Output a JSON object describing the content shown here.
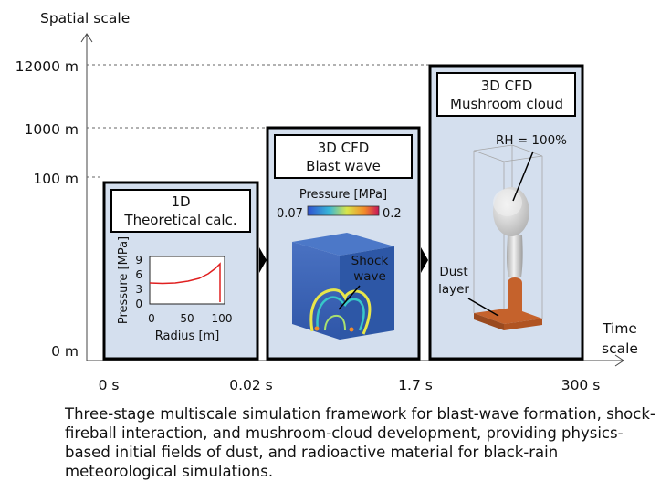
{
  "axes": {
    "y_title": "Spatial scale",
    "x_title_line1": "Time",
    "x_title_line2": "scale",
    "y_ticks": [
      "12000 m",
      "1000 m",
      "100 m",
      "0 m"
    ],
    "x_ticks": [
      "0 s",
      "0.02 s",
      "1.7 s",
      "300 s"
    ]
  },
  "stages": [
    {
      "title_line1": "1D",
      "title_line2": "Theoretical calc.",
      "plot": {
        "ylabel": "Pressure [MPa]",
        "xlabel": "Radius [m]",
        "yticks": [
          "9",
          "6",
          "3",
          "0"
        ],
        "xticks": [
          "0",
          "50",
          "100"
        ],
        "curve_color": "#e02020"
      }
    },
    {
      "title_line1": "3D CFD",
      "title_line2": "Blast wave",
      "colorbar": {
        "label": "Pressure [MPa]",
        "min": "0.07",
        "max": "0.2"
      },
      "annotation_line1": "Shock",
      "annotation_line2": "wave"
    },
    {
      "title_line1": "3D CFD",
      "title_line2": "Mushroom cloud",
      "annotation_rh": "RH = 100%",
      "annotation_dust_line1": "Dust",
      "annotation_dust_line2": "layer"
    }
  ],
  "caption": "Three-stage multiscale simulation framework for blast-wave formation, shock-fireball interaction, and mushroom-cloud development, providing physics-based initial fields of dust, and radioactive material for black-rain meteorological simulations.",
  "colors": {
    "panel_fill": "#d4dfee",
    "dust": "#c5622c",
    "cube_blue": "#3f67b8"
  }
}
